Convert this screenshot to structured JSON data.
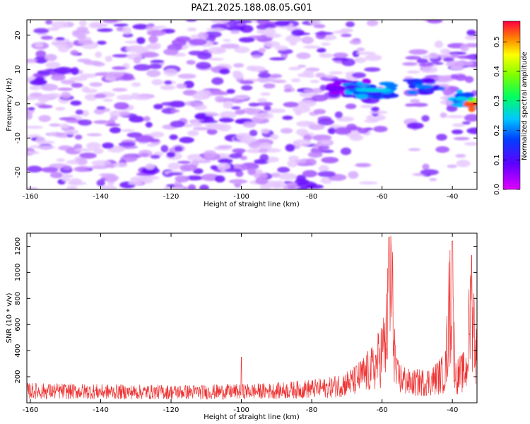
{
  "title": "PAZ1.2025.188.08.05.G01",
  "chart_data": [
    {
      "type": "heatmap",
      "xlabel": "Height of straight line (km)",
      "ylabel": "Frequency (Hz)",
      "xlim": [
        -161,
        -33
      ],
      "ylim": [
        -25,
        24.5
      ],
      "xticks": [
        -160,
        -140,
        -120,
        -100,
        -80,
        -60,
        -40
      ],
      "yticks": [
        -20,
        -10,
        0,
        10,
        20
      ],
      "colorbar": {
        "label": "Normalized spectral amplitude",
        "range": [
          0,
          0.57
        ],
        "ticks": [
          0.0,
          0.1,
          0.2,
          0.3,
          0.4,
          0.5
        ],
        "colormap": "rainbow (magenta-blue-cyan-green-yellow-red)"
      },
      "features": [
        {
          "x_range": [
            -74,
            -64
          ],
          "freq": 4.5,
          "amplitude": 0.08
        },
        {
          "x_range": [
            -70,
            -55
          ],
          "freq": 4.0,
          "amplitude": 0.25
        },
        {
          "x_range": [
            -52,
            -44
          ],
          "freq": 5.0,
          "amplitude": 0.2
        },
        {
          "x_range": [
            -40,
            -35
          ],
          "freq": 1.5,
          "amplitude": 0.25
        },
        {
          "x_range": [
            -35,
            -33
          ],
          "freq": 0.0,
          "amplitude": 0.55
        }
      ],
      "background": "sparse purple patches across -25..24 Hz, blank vertical gap near -60..-53 km"
    },
    {
      "type": "line",
      "xlabel": "Height of straight line (km)",
      "ylabel": "SNR (10 * v/v)",
      "xlim": [
        -161,
        -33
      ],
      "ylim": [
        0,
        1300
      ],
      "xticks": [
        -160,
        -140,
        -120,
        -100,
        -80,
        -60,
        -40
      ],
      "yticks": [
        200,
        400,
        600,
        800,
        1000,
        1200
      ],
      "color": "#ee3333",
      "trend_points": [
        {
          "x": -161,
          "y": 110
        },
        {
          "x": -130,
          "y": 100
        },
        {
          "x": -110,
          "y": 100
        },
        {
          "x": -90,
          "y": 110
        },
        {
          "x": -75,
          "y": 140
        },
        {
          "x": -68,
          "y": 200
        },
        {
          "x": -62,
          "y": 330
        },
        {
          "x": -59,
          "y": 550
        },
        {
          "x": -57.5,
          "y": 1150
        },
        {
          "x": -56,
          "y": 250
        },
        {
          "x": -52,
          "y": 180
        },
        {
          "x": -46,
          "y": 200
        },
        {
          "x": -42,
          "y": 280
        },
        {
          "x": -40.5,
          "y": 1050
        },
        {
          "x": -39,
          "y": 240
        },
        {
          "x": -36,
          "y": 300
        },
        {
          "x": -34.5,
          "y": 1000
        },
        {
          "x": -33,
          "y": 350
        }
      ],
      "peaks": [
        {
          "x": -58,
          "y": 1270
        },
        {
          "x": -40,
          "y": 1240
        },
        {
          "x": -34.5,
          "y": 1130
        },
        {
          "x": -100,
          "y": 350
        }
      ]
    }
  ]
}
